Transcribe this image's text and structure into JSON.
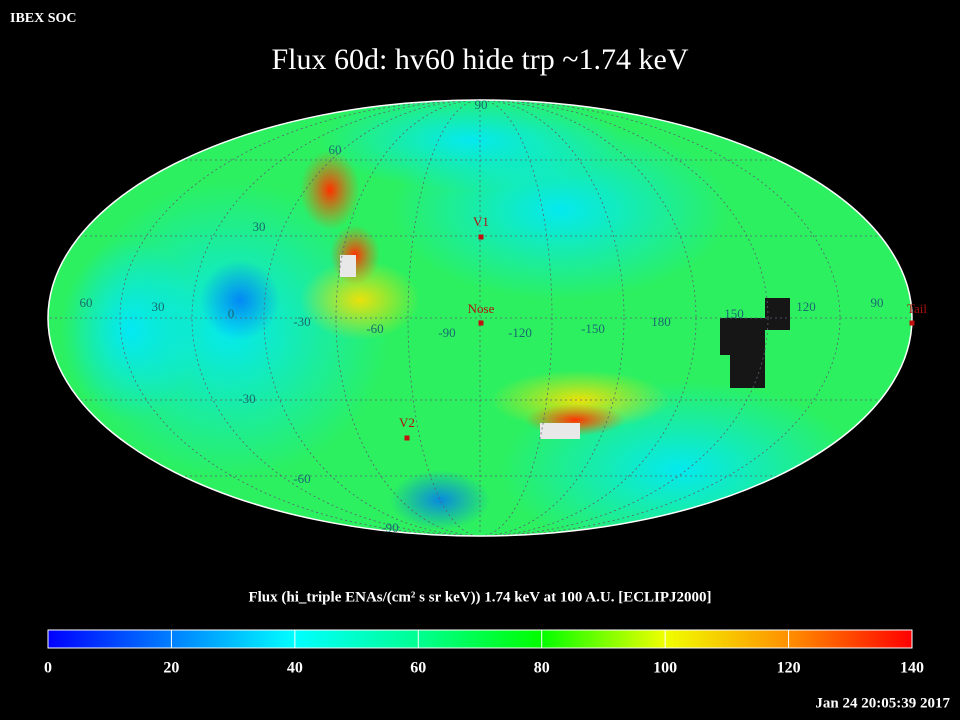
{
  "header": {
    "label": "IBEX SOC",
    "title": "Flux   60d: hv60 hide trp ~1.74 keV",
    "timestamp": "Jan 24 20:05:39 2017"
  },
  "map": {
    "latitude_labels": [
      "90",
      "60",
      "30",
      "-30",
      "-60",
      "-90"
    ],
    "longitude_labels": [
      "60",
      "30",
      "0",
      "-30",
      "-60",
      "-90",
      "-120",
      "-150",
      "180",
      "150",
      "120",
      "90"
    ],
    "markers": [
      {
        "label": "V1"
      },
      {
        "label": "Nose"
      },
      {
        "label": "V2"
      },
      {
        "label": "Tail"
      }
    ]
  },
  "colorbar": {
    "title": "Flux (hi_triple ENAs/(cm² s sr keV))  1.74 keV at 100 A.U. [ECLIPJ2000]",
    "lim": [
      0,
      140
    ],
    "ticks": [
      0,
      20,
      40,
      60,
      80,
      100,
      120,
      140
    ]
  }
}
